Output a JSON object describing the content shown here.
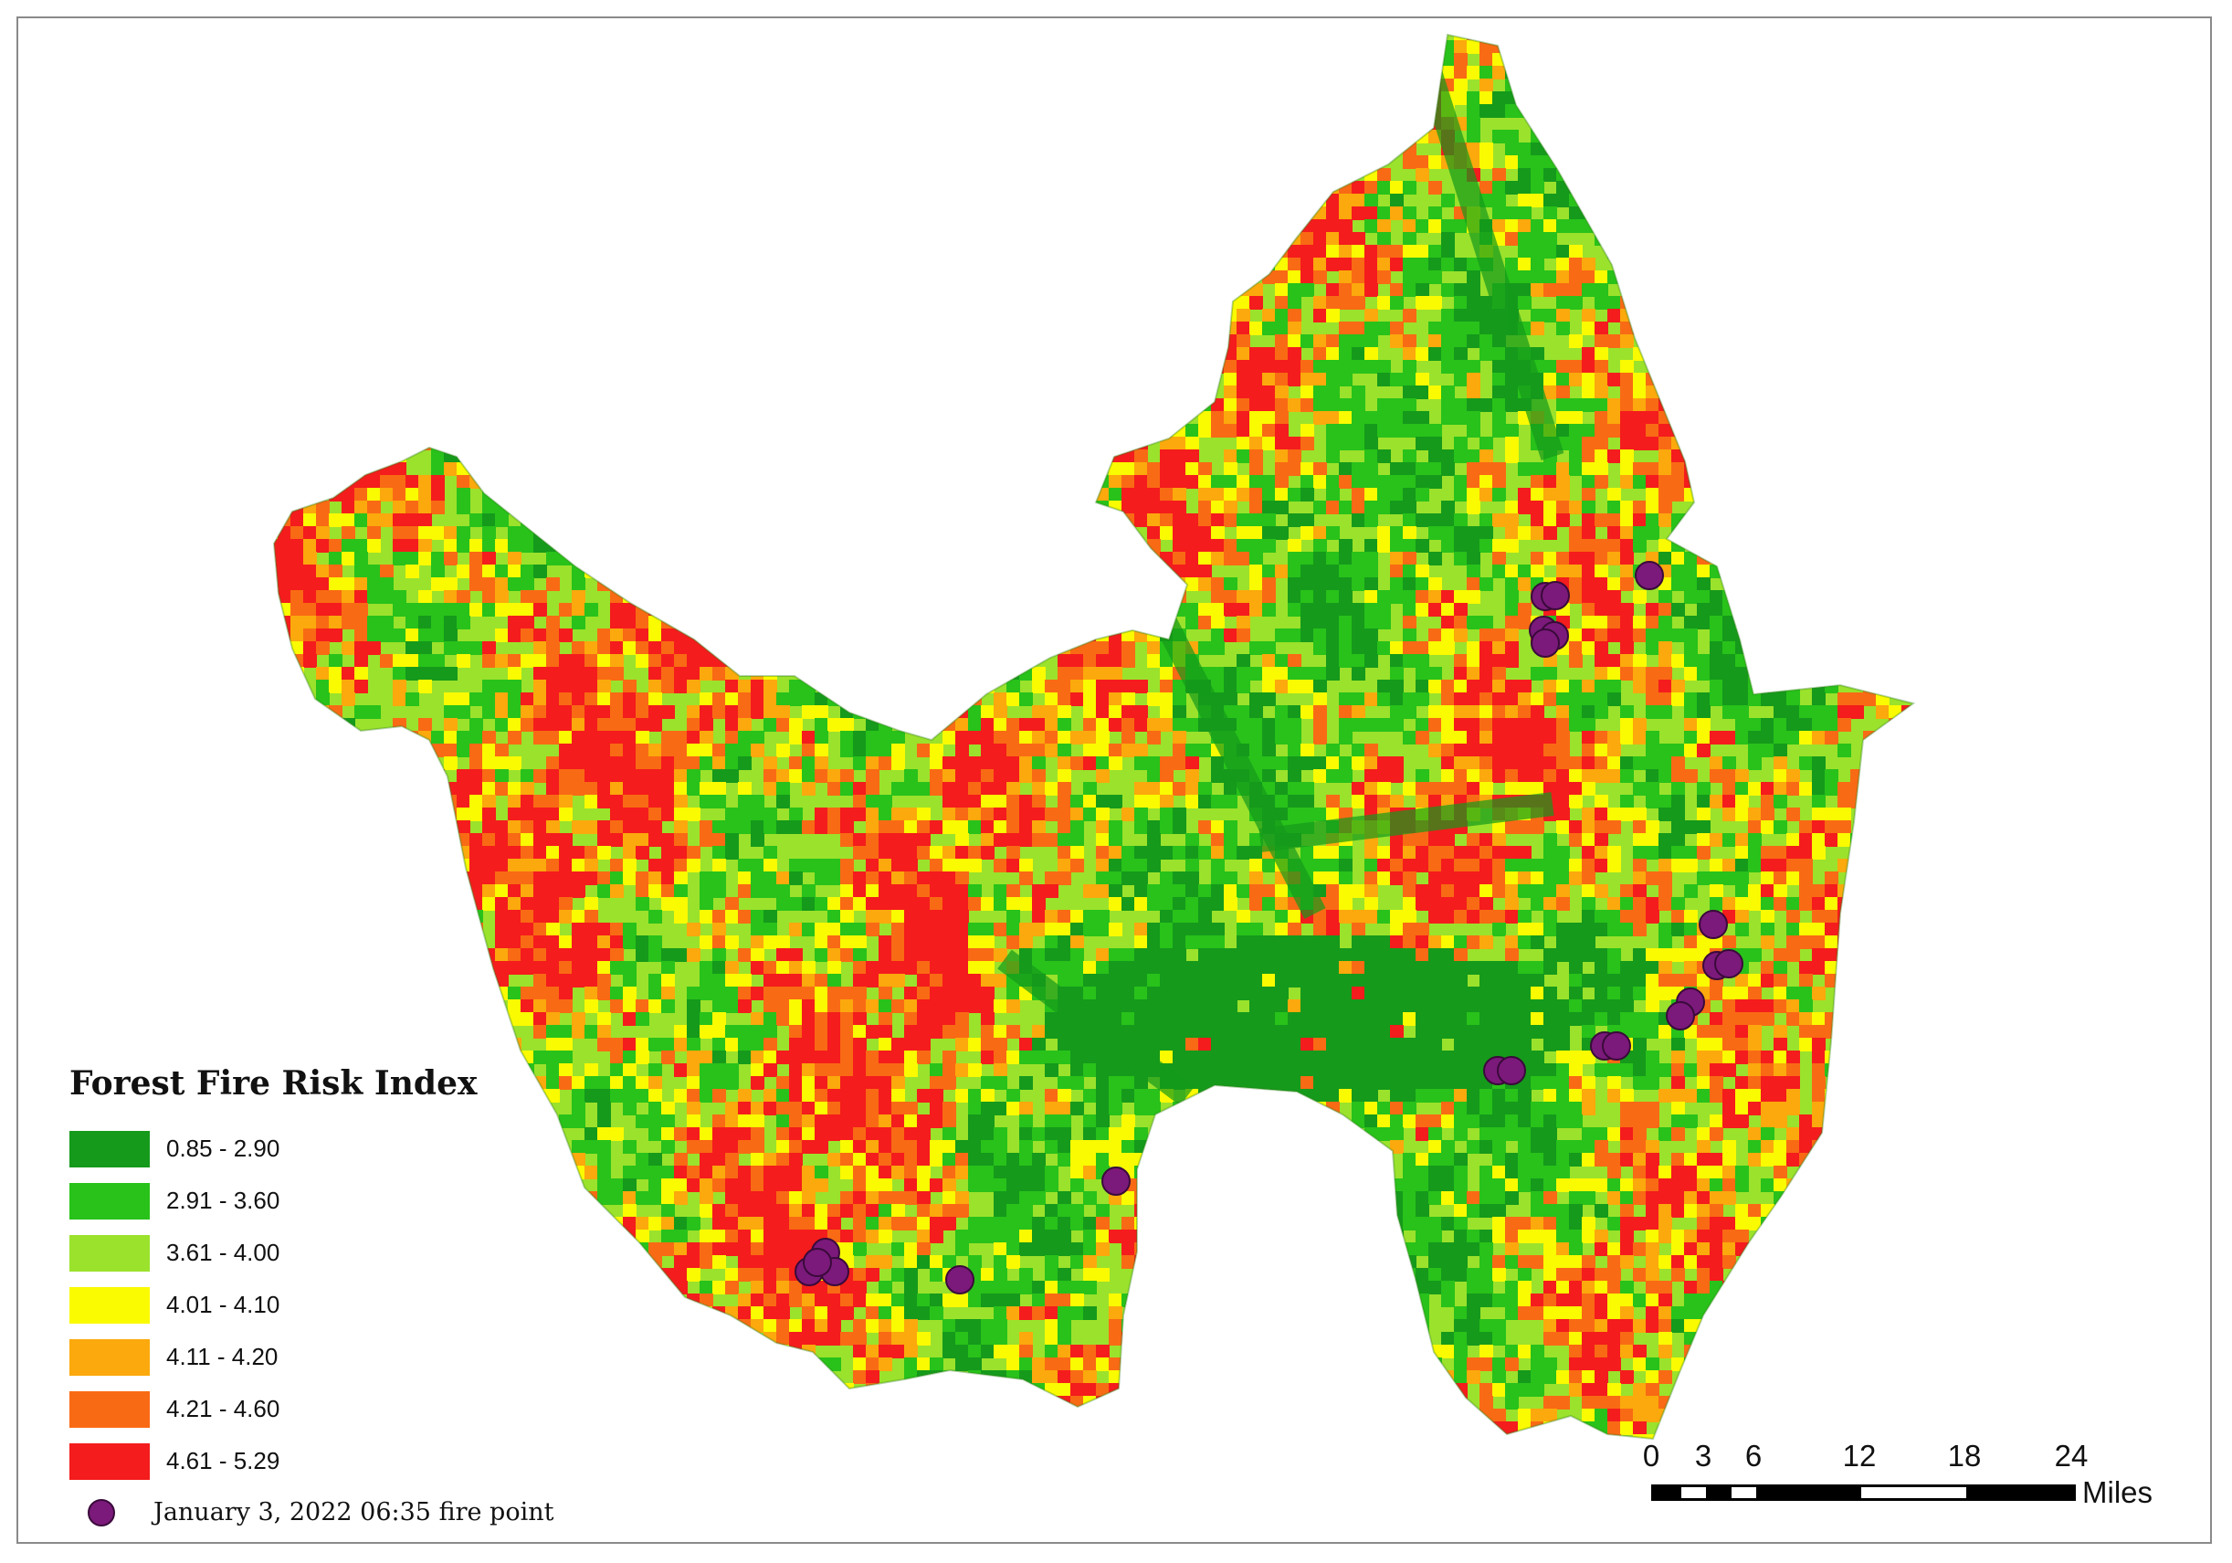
{
  "legend": {
    "title": "Forest Fire Risk Index",
    "classes": [
      {
        "label": "0.85 - 2.90",
        "color": "#159a1b"
      },
      {
        "label": "2.91 - 3.60",
        "color": "#28c21a"
      },
      {
        "label": "3.61 - 4.00",
        "color": "#9be22c"
      },
      {
        "label": "4.01 - 4.10",
        "color": "#fafa00"
      },
      {
        "label": "4.11 - 4.20",
        "color": "#fba90c"
      },
      {
        "label": "4.21 - 4.60",
        "color": "#f96a14"
      },
      {
        "label": "4.61 - 5.29",
        "color": "#f41c1c"
      }
    ],
    "fire_point_label": "January 3, 2022 06:35 fire point",
    "fire_point_color": "#7b1a7b"
  },
  "scale_bar": {
    "ticks": [
      "0",
      "3",
      "6",
      "12",
      "18",
      "24"
    ],
    "unit": "Miles"
  }
}
